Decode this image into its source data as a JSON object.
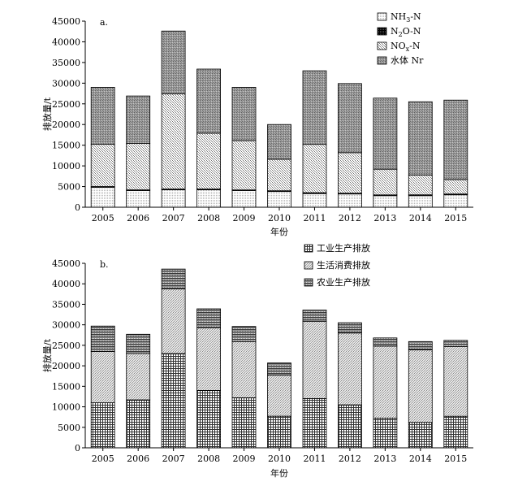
{
  "chart_data": [
    {
      "type": "bar",
      "stacked": true,
      "panel_label": "a.",
      "categories": [
        "2005",
        "2006",
        "2007",
        "2008",
        "2009",
        "2010",
        "2011",
        "2012",
        "2013",
        "2014",
        "2015"
      ],
      "xlabel": "年份",
      "ylabel": "排放量/t",
      "ylim": [
        0,
        45000
      ],
      "yticks": [
        0,
        5000,
        10000,
        15000,
        20000,
        25000,
        30000,
        35000,
        40000,
        45000
      ],
      "grid": false,
      "legend_position": "top-right",
      "series": [
        {
          "key": "nh3",
          "legend_main": "NH",
          "legend_sub": "3",
          "legend_tail": "-N",
          "values": [
            4800,
            4000,
            4200,
            4200,
            4000,
            3800,
            3300,
            3200,
            2800,
            2800,
            3000
          ]
        },
        {
          "key": "n2o",
          "legend_main": "N",
          "legend_sub": "2",
          "legend_tail": "O-N",
          "values": [
            200,
            200,
            200,
            200,
            200,
            200,
            200,
            200,
            200,
            200,
            200
          ]
        },
        {
          "key": "nox",
          "legend_main": "NO",
          "legend_sub": "x",
          "legend_tail": "-N",
          "values": [
            10200,
            11200,
            23000,
            13500,
            11900,
            7600,
            11700,
            9800,
            6200,
            4800,
            3500
          ]
        },
        {
          "key": "water",
          "legend_main": "水体 Nr",
          "legend_sub": "",
          "legend_tail": "",
          "values": [
            13800,
            11500,
            15200,
            15500,
            12900,
            8400,
            17800,
            16700,
            17200,
            17700,
            19200
          ]
        }
      ]
    },
    {
      "type": "bar",
      "stacked": true,
      "panel_label": "b.",
      "categories": [
        "2005",
        "2006",
        "2007",
        "2008",
        "2009",
        "2010",
        "2011",
        "2012",
        "2013",
        "2014",
        "2015"
      ],
      "xlabel": "年份",
      "ylabel": "排放量/t",
      "ylim": [
        0,
        45000
      ],
      "yticks": [
        0,
        5000,
        10000,
        15000,
        20000,
        25000,
        30000,
        35000,
        40000,
        45000
      ],
      "grid": false,
      "legend_position": "top-right",
      "series": [
        {
          "key": "industry",
          "legend_main": "工业生产排放",
          "legend_sub": "",
          "legend_tail": "",
          "values": [
            11000,
            11700,
            23000,
            14000,
            12200,
            7700,
            12000,
            10500,
            7200,
            6200,
            7700
          ]
        },
        {
          "key": "living",
          "legend_main": "生活消费排放",
          "legend_sub": "",
          "legend_tail": "",
          "values": [
            12500,
            11300,
            15800,
            15300,
            13700,
            10000,
            18800,
            17500,
            17600,
            17700,
            17000
          ]
        },
        {
          "key": "agri",
          "legend_main": "农业生产排放",
          "legend_sub": "",
          "legend_tail": "",
          "values": [
            6200,
            4700,
            4800,
            4600,
            3700,
            3000,
            2800,
            2500,
            2000,
            2000,
            1500
          ]
        }
      ]
    }
  ]
}
